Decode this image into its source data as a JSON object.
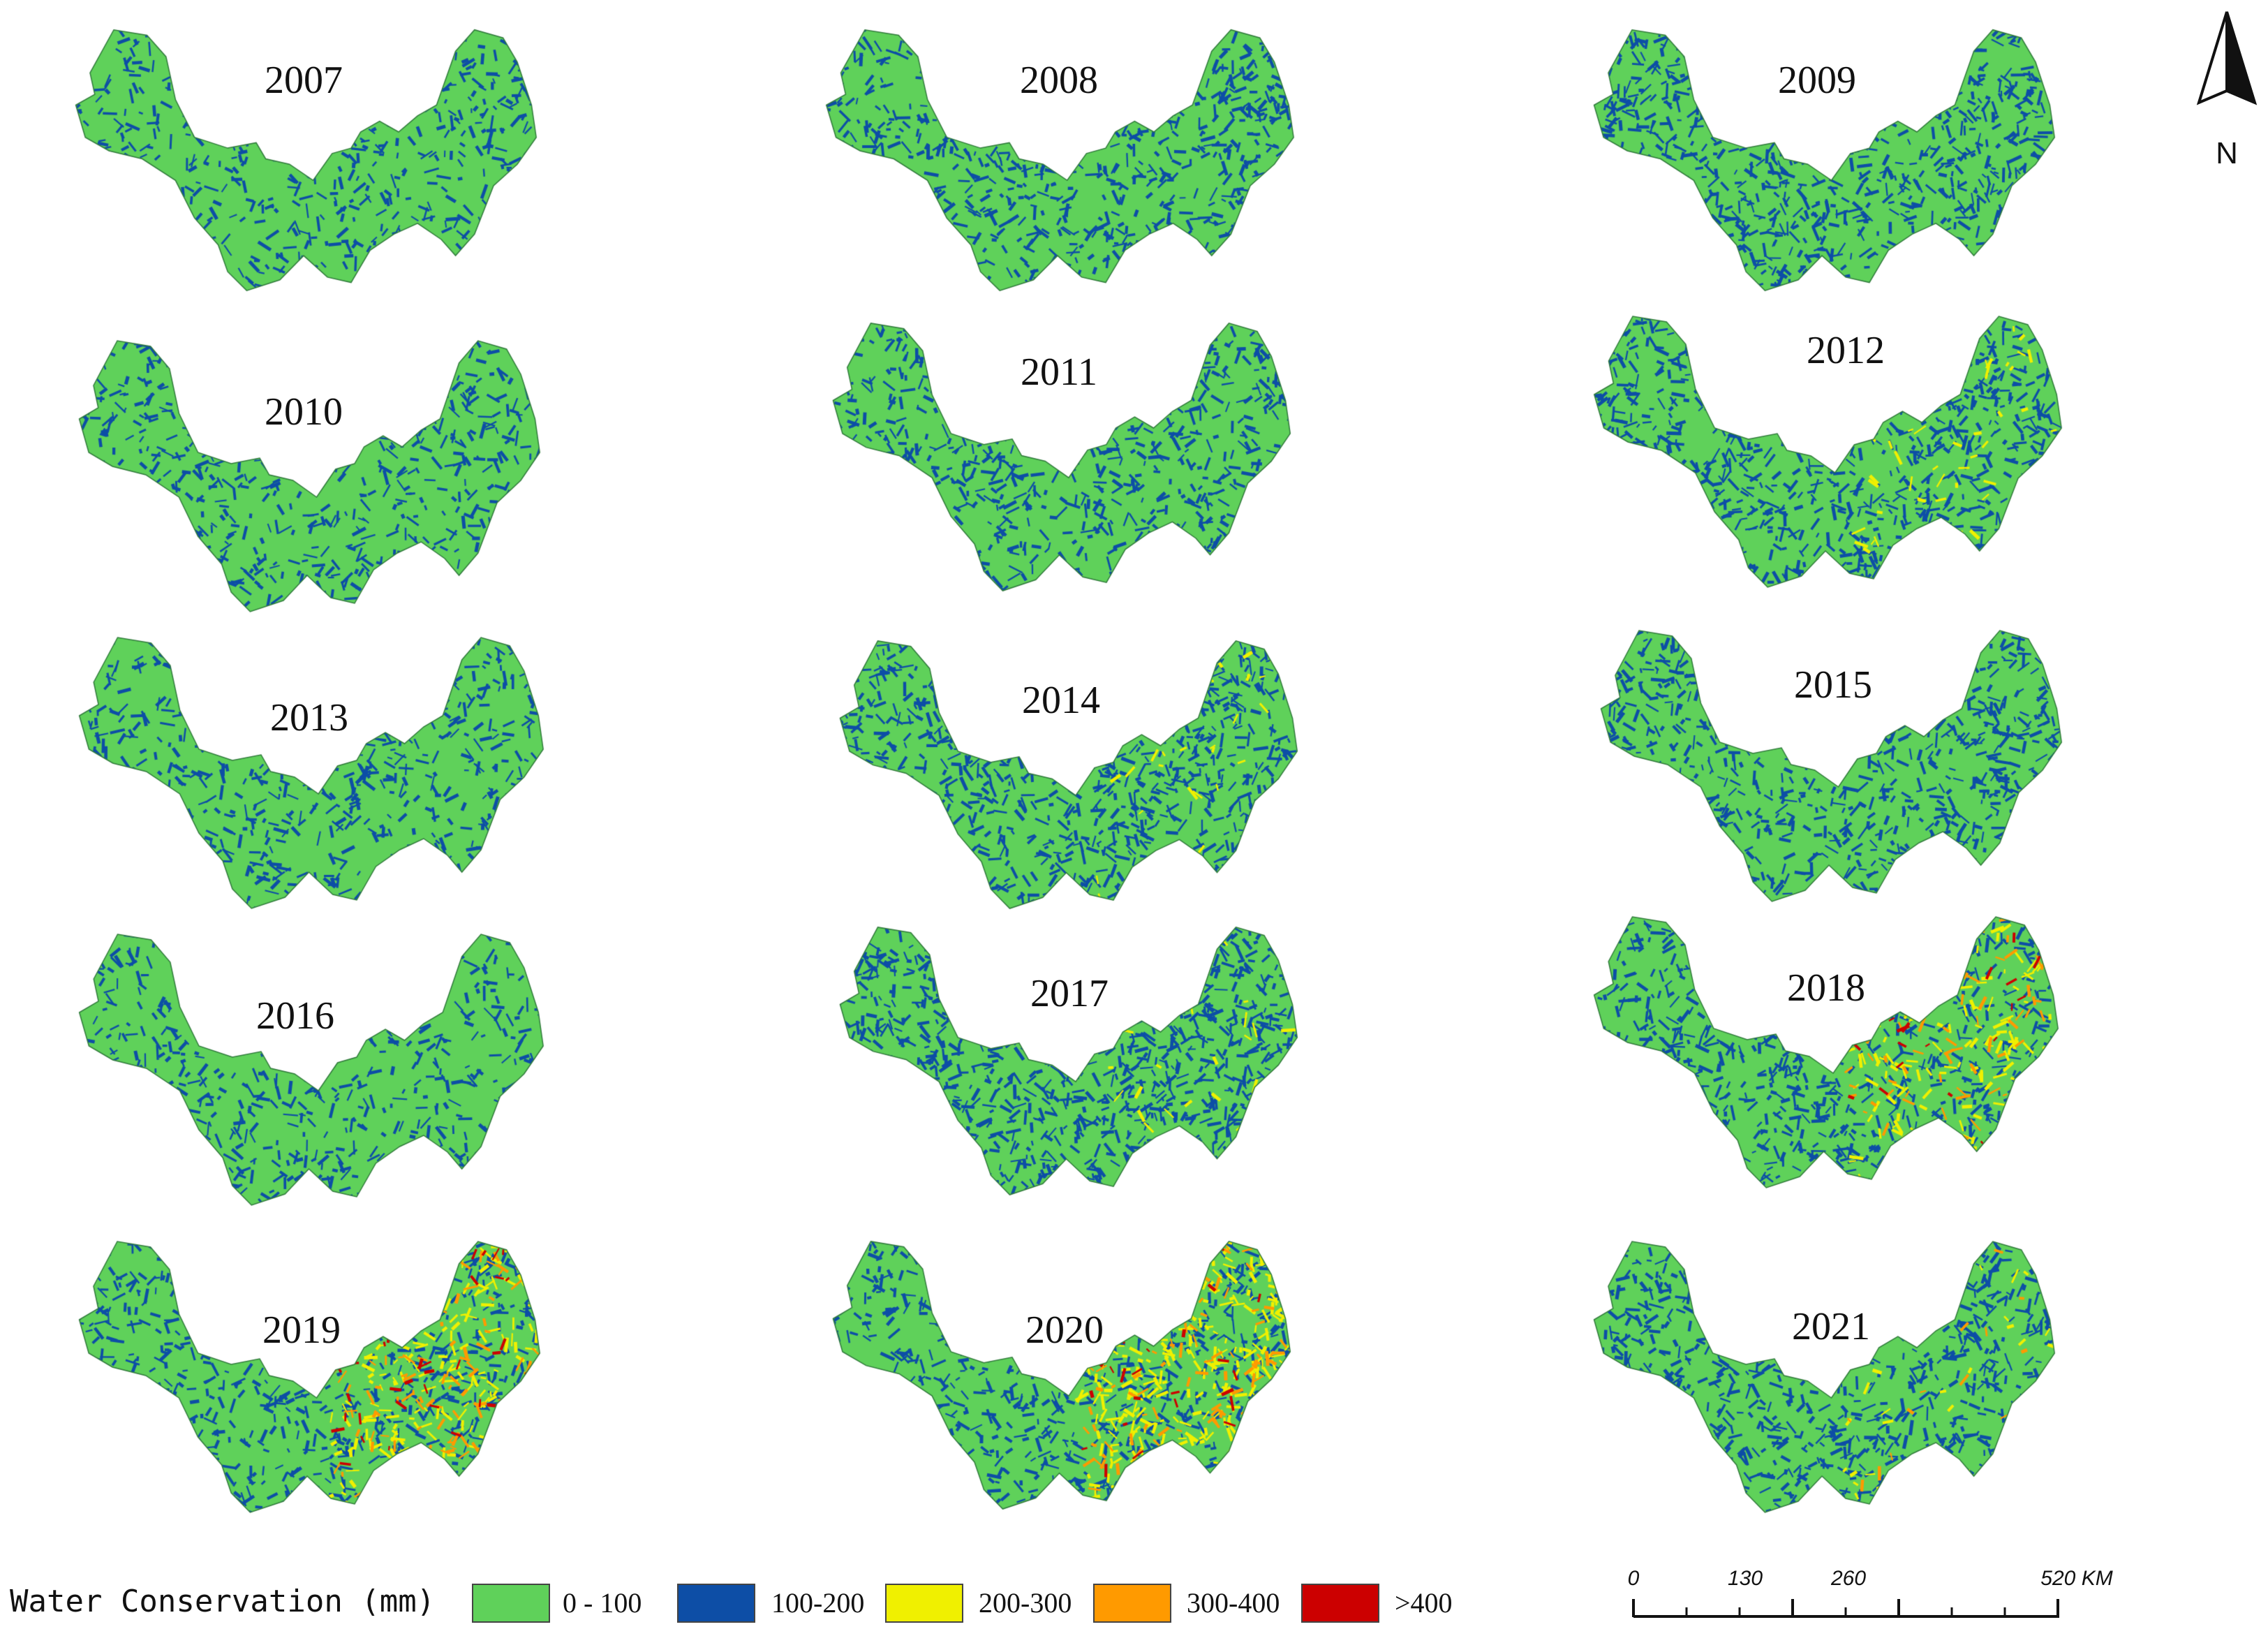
{
  "maps": [
    {
      "year": "2007",
      "dist": {
        "green": 0.72,
        "blue": 0.28
      }
    },
    {
      "year": "2008",
      "dist": {
        "green": 0.58,
        "blue": 0.42
      }
    },
    {
      "year": "2009",
      "dist": {
        "green": 0.55,
        "blue": 0.45
      }
    },
    {
      "year": "2010",
      "dist": {
        "green": 0.68,
        "blue": 0.32
      }
    },
    {
      "year": "2011",
      "dist": {
        "green": 0.6,
        "blue": 0.4
      }
    },
    {
      "year": "2012",
      "dist": {
        "green": 0.5,
        "blue": 0.47,
        "yellow": 0.03
      }
    },
    {
      "year": "2013",
      "dist": {
        "green": 0.66,
        "blue": 0.34
      }
    },
    {
      "year": "2014",
      "dist": {
        "green": 0.5,
        "blue": 0.48,
        "yellow": 0.02
      }
    },
    {
      "year": "2015",
      "dist": {
        "green": 0.56,
        "blue": 0.44
      }
    },
    {
      "year": "2016",
      "dist": {
        "green": 0.7,
        "blue": 0.3
      }
    },
    {
      "year": "2017",
      "dist": {
        "green": 0.46,
        "blue": 0.52,
        "yellow": 0.02
      }
    },
    {
      "year": "2018",
      "dist": {
        "green": 0.47,
        "blue": 0.4,
        "yellow": 0.08,
        "orange": 0.04,
        "red": 0.01
      }
    },
    {
      "year": "2019",
      "dist": {
        "green": 0.42,
        "blue": 0.4,
        "yellow": 0.1,
        "orange": 0.06,
        "red": 0.02
      }
    },
    {
      "year": "2020",
      "dist": {
        "green": 0.38,
        "blue": 0.38,
        "yellow": 0.16,
        "orange": 0.06,
        "red": 0.02
      }
    },
    {
      "year": "2021",
      "dist": {
        "green": 0.55,
        "blue": 0.42,
        "yellow": 0.02,
        "orange": 0.01
      }
    }
  ],
  "legend": {
    "title": "Water Conservation (mm)",
    "items": [
      {
        "label": "0 - 100",
        "color": "#5fd15a"
      },
      {
        "label": "100-200",
        "color": "#0d4ea6"
      },
      {
        "label": "200-300",
        "color": "#f0f000"
      },
      {
        "label": "300-400",
        "color": "#ff9a00"
      },
      {
        "label": ">400",
        "color": "#cc0000"
      }
    ]
  },
  "north_arrow": {
    "label": "N"
  },
  "scale_bar": {
    "ticks": [
      "0",
      "130",
      "260",
      "520 KM"
    ]
  }
}
